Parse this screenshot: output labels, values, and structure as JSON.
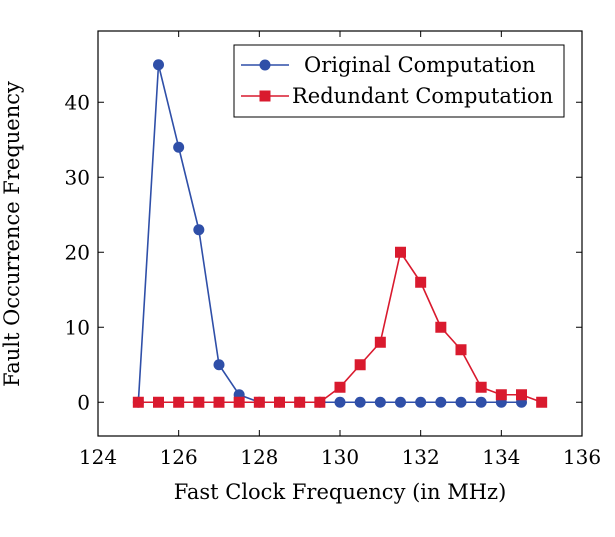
{
  "chart_data": {
    "type": "line",
    "title": "",
    "xlabel": "Fast Clock Frequency (in MHz)",
    "ylabel": "Fault Occurrence Frequency",
    "xlim": [
      124,
      136
    ],
    "ylim": [
      -4.5,
      49.5
    ],
    "xticks": [
      124,
      126,
      128,
      130,
      132,
      134,
      136
    ],
    "yticks": [
      0,
      10,
      20,
      30,
      40
    ],
    "grid": false,
    "legend_position": "top-right",
    "series": [
      {
        "name": "Original Computation",
        "color": "#2f4fa8",
        "marker": "circle",
        "x": [
          125,
          125.5,
          126,
          126.5,
          127,
          127.5,
          128,
          128.5,
          129,
          129.5,
          130,
          130.5,
          131,
          131.5,
          132,
          132.5,
          133,
          133.5,
          134,
          134.5
        ],
        "y": [
          0,
          45,
          34,
          23,
          5,
          1,
          0,
          0,
          0,
          0,
          0,
          0,
          0,
          0,
          0,
          0,
          0,
          0,
          0,
          0
        ]
      },
      {
        "name": "Redundant Computation",
        "color": "#d91a2e",
        "marker": "square",
        "x": [
          125,
          125.5,
          126,
          126.5,
          127,
          127.5,
          128,
          128.5,
          129,
          129.5,
          130,
          130.5,
          131,
          131.5,
          132,
          132.5,
          133,
          133.5,
          134,
          134.5,
          135
        ],
        "y": [
          0,
          0,
          0,
          0,
          0,
          0,
          0,
          0,
          0,
          0,
          2,
          5,
          8,
          20,
          16,
          10,
          7,
          2,
          1,
          1,
          0
        ]
      }
    ]
  }
}
